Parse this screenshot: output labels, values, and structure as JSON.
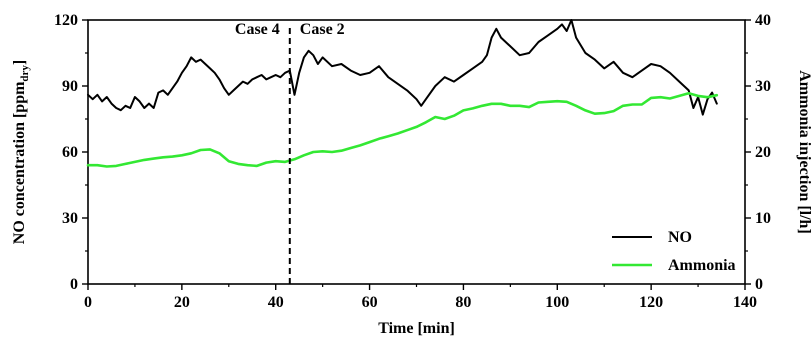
{
  "chart_data": {
    "type": "line",
    "xlabel": "Time [min]",
    "ylabel_left": {
      "prefix": "NO concentration [ppm",
      "subscript": "dry",
      "suffix": "]"
    },
    "ylabel_right": "Ammonia injection [l/h]",
    "xlim": [
      0,
      140
    ],
    "ylim_left": [
      0,
      120
    ],
    "ylim_right": [
      0,
      40
    ],
    "x_ticks": [
      0,
      20,
      40,
      60,
      80,
      100,
      120,
      140
    ],
    "y_left_ticks": [
      0,
      30,
      60,
      90,
      120
    ],
    "y_right_ticks": [
      0,
      10,
      20,
      30,
      40
    ],
    "grid": false,
    "legend_position": "bottom-right",
    "annotations": [
      {
        "text": "Case 4",
        "side": "left"
      },
      {
        "text": "Case 2",
        "side": "right"
      }
    ],
    "divider_x": 43,
    "series": [
      {
        "name": "NO",
        "axis": "left",
        "color": "#000000",
        "x": [
          0,
          1,
          2,
          3,
          4,
          5,
          6,
          7,
          8,
          9,
          10,
          11,
          12,
          13,
          14,
          15,
          16,
          17,
          18,
          19,
          20,
          21,
          22,
          23,
          24,
          25,
          26,
          27,
          28,
          29,
          30,
          31,
          32,
          33,
          34,
          35,
          36,
          37,
          38,
          39,
          40,
          41,
          42,
          43,
          44,
          45,
          46,
          47,
          48,
          49,
          50,
          52,
          54,
          56,
          58,
          60,
          62,
          64,
          66,
          68,
          70,
          71,
          72,
          74,
          76,
          78,
          80,
          82,
          84,
          85,
          86,
          87,
          88,
          90,
          92,
          94,
          96,
          98,
          100,
          101,
          102,
          103,
          104,
          106,
          108,
          110,
          112,
          114,
          116,
          118,
          120,
          122,
          124,
          126,
          128,
          129,
          130,
          131,
          132,
          133,
          134
        ],
        "values": [
          86,
          84,
          86,
          83,
          85,
          82,
          80,
          79,
          81,
          80,
          85,
          83,
          80,
          82,
          80,
          87,
          88,
          86,
          89,
          92,
          96,
          99,
          103,
          101,
          102,
          100,
          98,
          96,
          93,
          89,
          86,
          88,
          90,
          92,
          91,
          93,
          94,
          95,
          93,
          94,
          95,
          94,
          96,
          97,
          86,
          96,
          103,
          106,
          104,
          100,
          103,
          99,
          100,
          97,
          95,
          96,
          99,
          94,
          91,
          88,
          84,
          81,
          84,
          90,
          94,
          92,
          95,
          98,
          101,
          104,
          112,
          116,
          112,
          108,
          104,
          105,
          110,
          113,
          116,
          118,
          115,
          120,
          112,
          105,
          102,
          98,
          101,
          96,
          94,
          97,
          100,
          99,
          96,
          92,
          88,
          80,
          85,
          77,
          84,
          87,
          82
        ]
      },
      {
        "name": "Ammonia",
        "axis": "right",
        "color": "#33e833",
        "x": [
          0,
          2,
          4,
          6,
          8,
          10,
          12,
          14,
          16,
          18,
          20,
          22,
          24,
          26,
          28,
          30,
          32,
          34,
          36,
          38,
          40,
          42,
          44,
          46,
          48,
          50,
          52,
          54,
          56,
          58,
          60,
          62,
          64,
          66,
          68,
          70,
          72,
          74,
          76,
          78,
          80,
          82,
          84,
          86,
          88,
          90,
          92,
          94,
          96,
          98,
          100,
          102,
          104,
          106,
          108,
          110,
          112,
          114,
          116,
          118,
          120,
          122,
          124,
          126,
          128,
          130,
          132,
          134
        ],
        "values": [
          18.0,
          18.0,
          17.8,
          17.9,
          18.2,
          18.5,
          18.8,
          19.0,
          19.2,
          19.3,
          19.5,
          19.8,
          20.3,
          20.4,
          19.8,
          18.6,
          18.2,
          18.0,
          17.9,
          18.4,
          18.6,
          18.5,
          18.9,
          19.5,
          20.0,
          20.1,
          20.0,
          20.2,
          20.6,
          21.0,
          21.5,
          22.0,
          22.4,
          22.8,
          23.3,
          23.8,
          24.5,
          25.3,
          25.0,
          25.5,
          26.3,
          26.6,
          27.0,
          27.3,
          27.3,
          27.0,
          27.0,
          26.8,
          27.5,
          27.6,
          27.7,
          27.6,
          27.0,
          26.3,
          25.8,
          25.9,
          26.2,
          27.0,
          27.2,
          27.2,
          28.2,
          28.3,
          28.1,
          28.5,
          28.9,
          28.5,
          28.3,
          28.6
        ]
      }
    ]
  }
}
